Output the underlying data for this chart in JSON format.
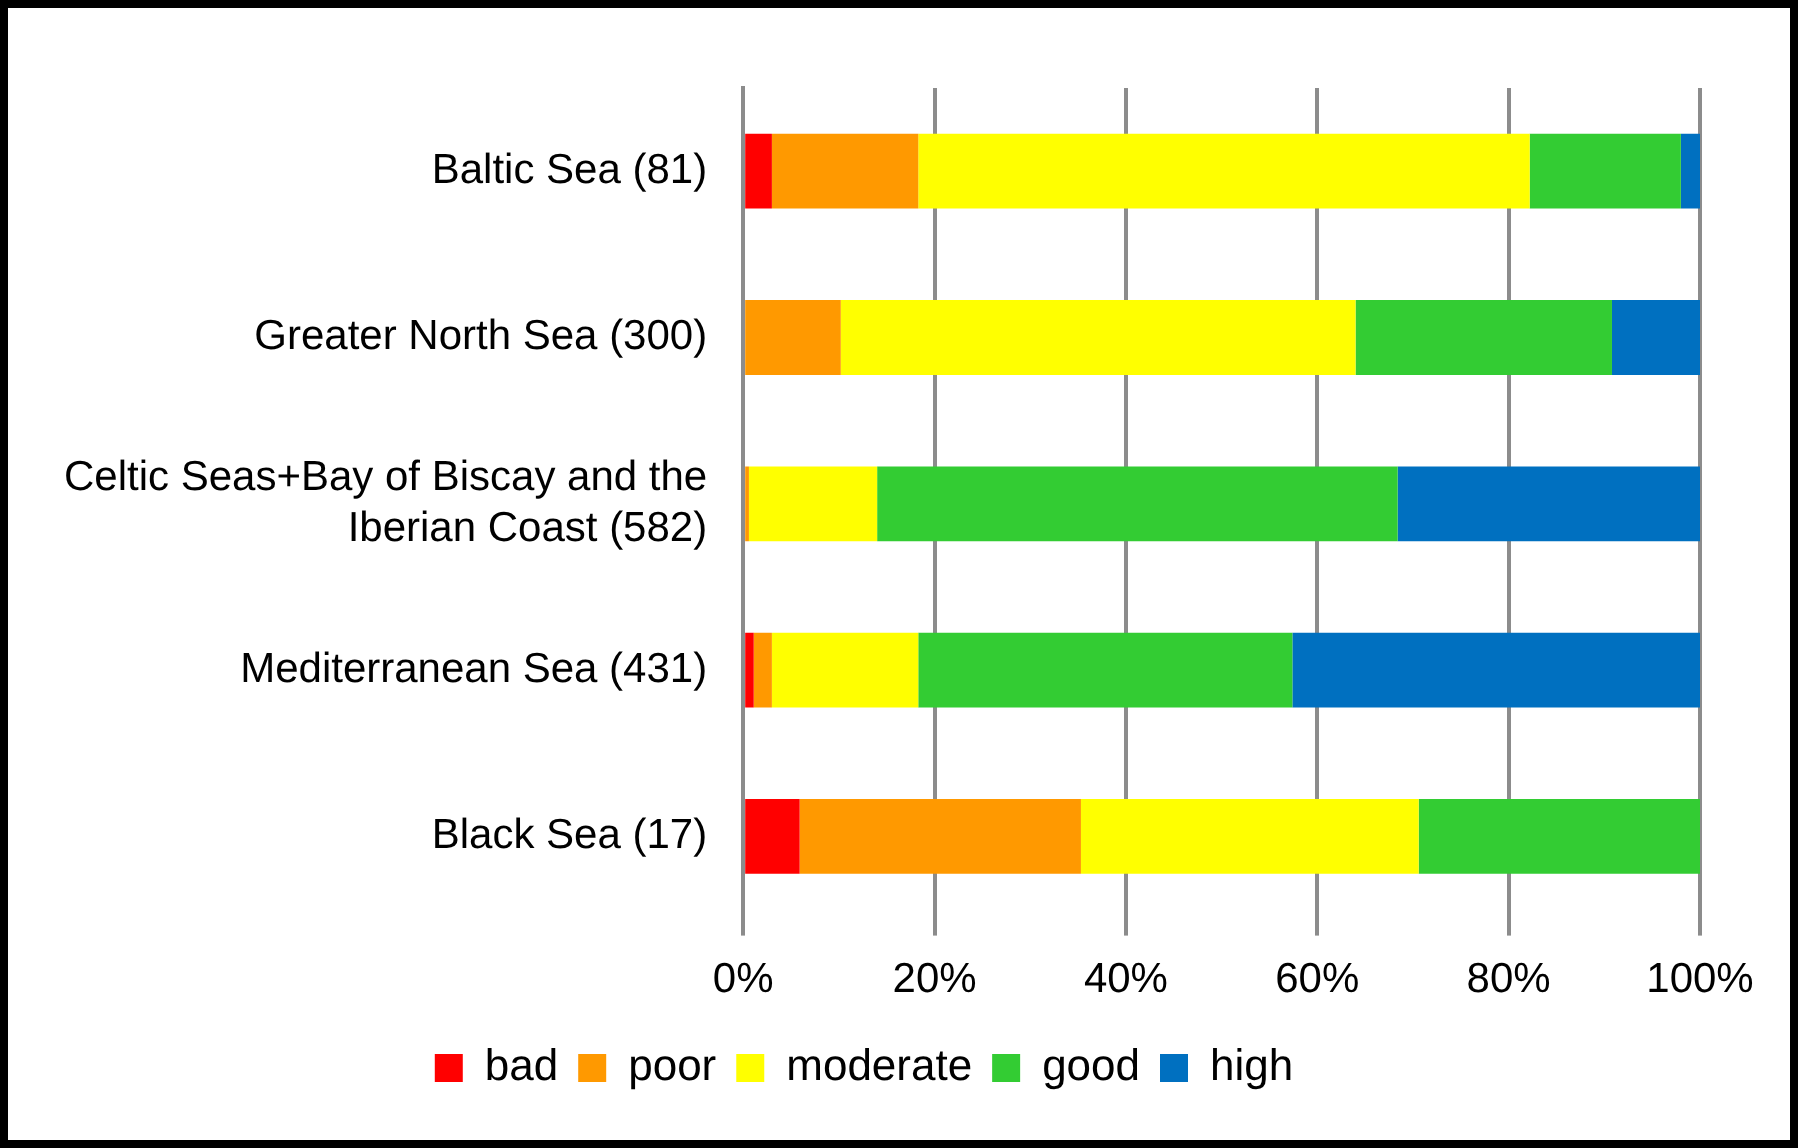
{
  "chart_data": {
    "type": "bar",
    "orientation": "horizontal",
    "stacked": true,
    "categories": [
      "Baltic Sea (81)",
      "Greater North Sea (300)",
      "Celtic Seas+Bay of Biscay and the Iberian Coast (582)",
      "Mediterranean Sea (431)",
      "Black Sea (17)"
    ],
    "series": [
      {
        "name": "bad",
        "color": "#ff0000",
        "values": [
          3,
          0,
          0,
          1.1,
          5.9
        ]
      },
      {
        "name": "poor",
        "color": "#ff9900",
        "values": [
          15.3,
          10.2,
          0.6,
          1.9,
          29.4
        ]
      },
      {
        "name": "moderate",
        "color": "#ffff00",
        "values": [
          63.9,
          53.8,
          13.4,
          15.3,
          35.3
        ]
      },
      {
        "name": "good",
        "color": "#33cc33",
        "values": [
          15.8,
          26.8,
          54.4,
          39.1,
          29.4
        ]
      },
      {
        "name": "high",
        "color": "#0070c0",
        "values": [
          2,
          9.2,
          31.6,
          42.6,
          0
        ]
      }
    ],
    "xlim": [
      0,
      100
    ],
    "xticks": [
      {
        "value": 0,
        "label": "0%"
      },
      {
        "value": 20,
        "label": "20%"
      },
      {
        "value": 40,
        "label": "40%"
      },
      {
        "value": 60,
        "label": "60%"
      },
      {
        "value": 80,
        "label": "80%"
      },
      {
        "value": 100,
        "label": "100%"
      }
    ],
    "grid": "x",
    "legend": "bottom"
  }
}
